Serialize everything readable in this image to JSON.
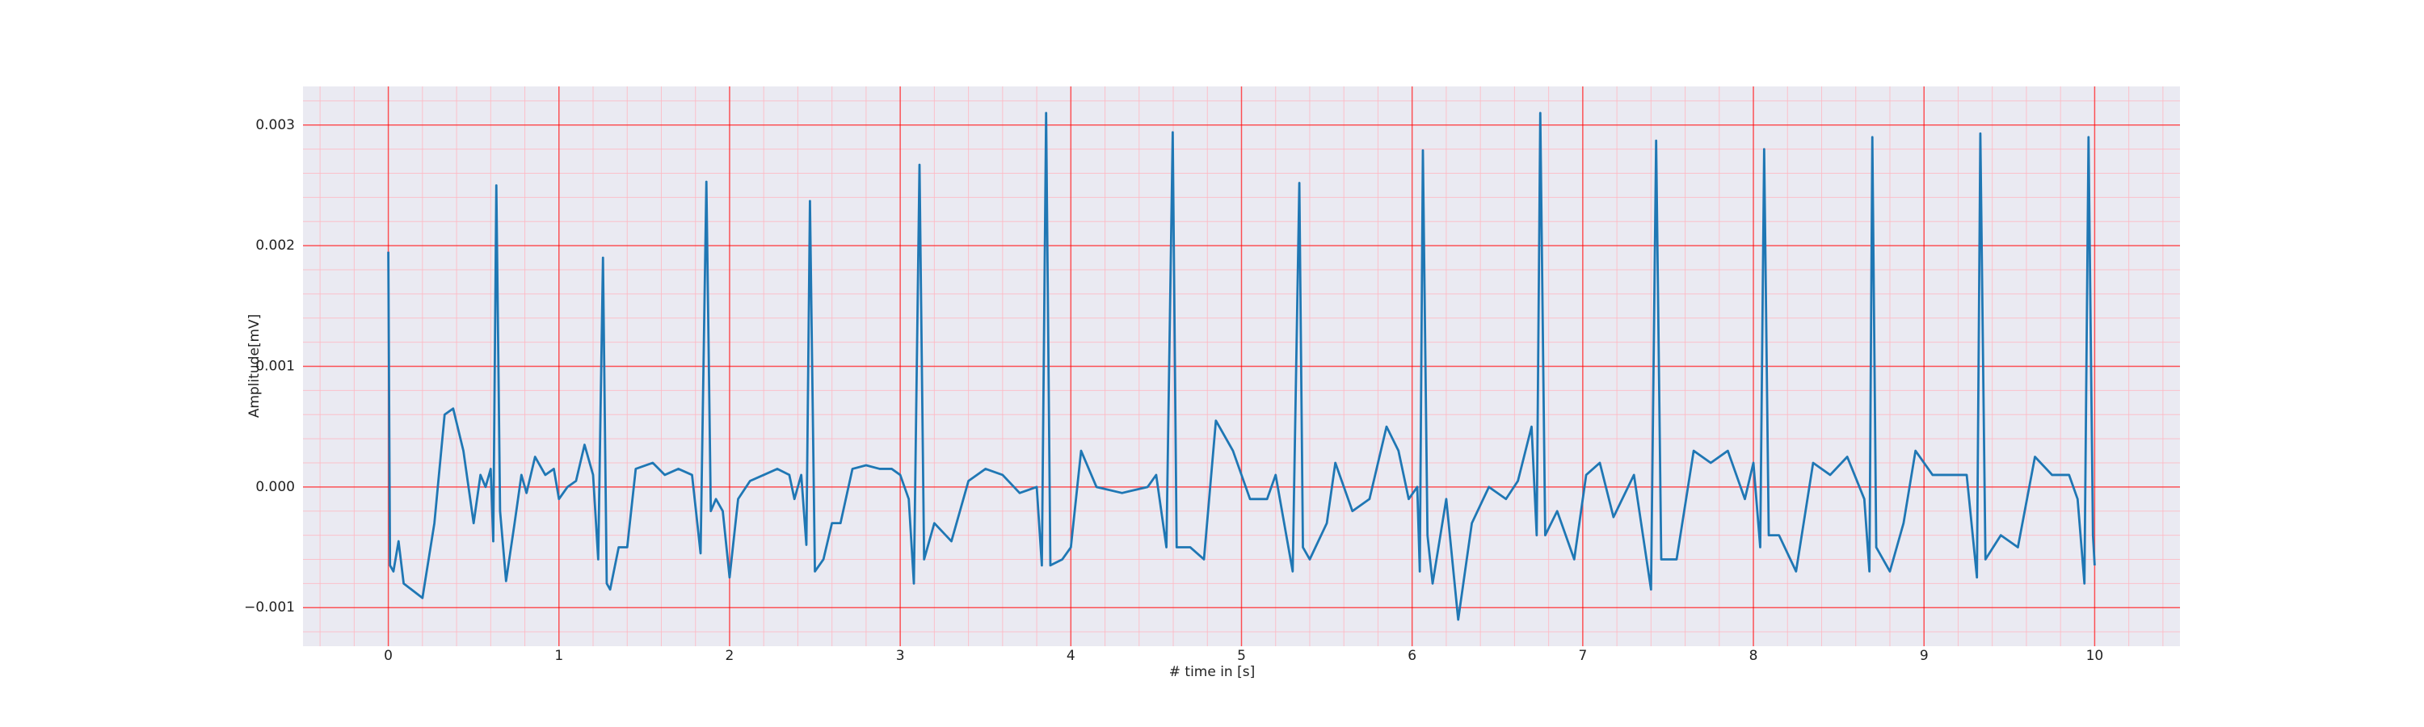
{
  "chart_data": {
    "type": "line",
    "xlabel": "# time in [s]",
    "ylabel": "Amplitude[mV]",
    "color": "#1f77b4",
    "xlim": [
      -0.5,
      10.5
    ],
    "ylim": [
      -0.00132,
      0.00332
    ],
    "xticks": [
      0,
      1,
      2,
      3,
      4,
      5,
      6,
      7,
      8,
      9,
      10
    ],
    "yticks": [
      {
        "value": -0.001,
        "label": "−0.001"
      },
      {
        "value": 0,
        "label": "0.000"
      },
      0.001,
      0.002,
      0.003
    ],
    "grid": true,
    "minor_grid": {
      "x_step": 0.2,
      "y_step": 0.0002
    },
    "x": [
      0,
      0.01,
      0.03,
      0.06,
      0.09,
      0.2,
      0.27,
      0.33,
      0.38,
      0.44,
      0.5,
      0.54,
      0.57,
      0.6,
      0.615,
      0.633,
      0.655,
      0.69,
      0.74,
      0.78,
      0.81,
      0.86,
      0.92,
      0.97,
      1.0,
      1.05,
      1.1,
      1.15,
      1.2,
      1.23,
      1.258,
      1.28,
      1.3,
      1.35,
      1.4,
      1.45,
      1.55,
      1.62,
      1.7,
      1.78,
      1.83,
      1.864,
      1.89,
      1.92,
      1.96,
      2.0,
      2.05,
      2.12,
      2.2,
      2.28,
      2.35,
      2.38,
      2.42,
      2.45,
      2.471,
      2.5,
      2.55,
      2.6,
      2.65,
      2.72,
      2.8,
      2.88,
      2.95,
      3.0,
      3.05,
      3.08,
      3.113,
      3.14,
      3.2,
      3.3,
      3.4,
      3.5,
      3.6,
      3.7,
      3.8,
      3.83,
      3.855,
      3.88,
      3.95,
      4.0,
      4.06,
      4.15,
      4.3,
      4.45,
      4.5,
      4.56,
      4.597,
      4.62,
      4.7,
      4.78,
      4.85,
      4.95,
      5.05,
      5.15,
      5.2,
      5.3,
      5.339,
      5.36,
      5.4,
      5.5,
      5.55,
      5.65,
      5.75,
      5.85,
      5.92,
      5.98,
      6.03,
      6.045,
      6.063,
      6.09,
      6.12,
      6.2,
      6.27,
      6.35,
      6.45,
      6.55,
      6.62,
      6.7,
      6.73,
      6.751,
      6.78,
      6.85,
      6.95,
      7.02,
      7.1,
      7.18,
      7.3,
      7.4,
      7.43,
      7.46,
      7.55,
      7.65,
      7.75,
      7.85,
      7.95,
      8.0,
      8.04,
      8.063,
      8.09,
      8.15,
      8.25,
      8.35,
      8.45,
      8.55,
      8.65,
      8.68,
      8.697,
      8.72,
      8.8,
      8.88,
      8.95,
      9.05,
      9.15,
      9.25,
      9.31,
      9.33,
      9.36,
      9.45,
      9.55,
      9.65,
      9.75,
      9.85,
      9.9,
      9.94,
      9.964,
      9.99,
      10.0
    ],
    "values": [
      0.00195,
      -0.00065,
      -0.0007,
      -0.00045,
      -0.0008,
      -0.00092,
      -0.0003,
      0.0006,
      0.00065,
      0.0003,
      -0.0003,
      0.0001,
      0,
      0.00015,
      -0.00045,
      0.0025,
      -0.0002,
      -0.00078,
      -0.0003,
      0.0001,
      -5e-05,
      0.00025,
      0.0001,
      0.00015,
      -0.0001,
      0,
      5e-05,
      0.00035,
      0.0001,
      -0.0006,
      0.0019,
      -0.0008,
      -0.00085,
      -0.0005,
      -0.0005,
      0.00015,
      0.0002,
      0.0001,
      0.00015,
      0.0001,
      -0.00055,
      0.00253,
      -0.0002,
      -0.0001,
      -0.0002,
      -0.00075,
      -0.0001,
      5e-05,
      0.0001,
      0.00015,
      0.0001,
      -0.0001,
      0.0001,
      -0.00048,
      0.00237,
      -0.0007,
      -0.0006,
      -0.0003,
      -0.0003,
      0.00015,
      0.00018,
      0.00015,
      0.00015,
      0.0001,
      -0.0001,
      -0.0008,
      0.00267,
      -0.0006,
      -0.0003,
      -0.00045,
      5e-05,
      0.00015,
      0.0001,
      -5e-05,
      0,
      -0.00065,
      0.0031,
      -0.00065,
      -0.0006,
      -0.0005,
      0.0003,
      0,
      -5e-05,
      0,
      0.0001,
      -0.0005,
      0.00294,
      -0.0005,
      -0.0005,
      -0.0006,
      0.00055,
      0.0003,
      -0.0001,
      -0.0001,
      0.0001,
      -0.0007,
      0.00252,
      -0.0005,
      -0.0006,
      -0.0003,
      0.0002,
      -0.0002,
      -0.0001,
      0.0005,
      0.0003,
      -0.0001,
      0,
      -0.0007,
      0.00279,
      -0.0004,
      -0.0008,
      -0.0001,
      -0.0011,
      -0.0003,
      0,
      -0.0001,
      5e-05,
      0.0005,
      -0.0004,
      0.0031,
      -0.0004,
      -0.0002,
      -0.0006,
      0.0001,
      0.0002,
      -0.00025,
      0.0001,
      -0.00085,
      0.00287,
      -0.0006,
      -0.0006,
      0.0003,
      0.0002,
      0.0003,
      -0.0001,
      0.0002,
      -0.0005,
      0.0028,
      -0.0004,
      -0.0004,
      -0.0007,
      0.0002,
      0.0001,
      0.00025,
      -0.0001,
      -0.0007,
      0.0029,
      -0.0005,
      -0.0007,
      -0.0003,
      0.0003,
      0.0001,
      0.0001,
      0.0001,
      -0.00075,
      0.00293,
      -0.0006,
      -0.0004,
      -0.0005,
      0.00025,
      0.0001,
      0.0001,
      -0.0001,
      -0.0008,
      0.0029,
      -0.0004,
      -0.00065
    ]
  }
}
